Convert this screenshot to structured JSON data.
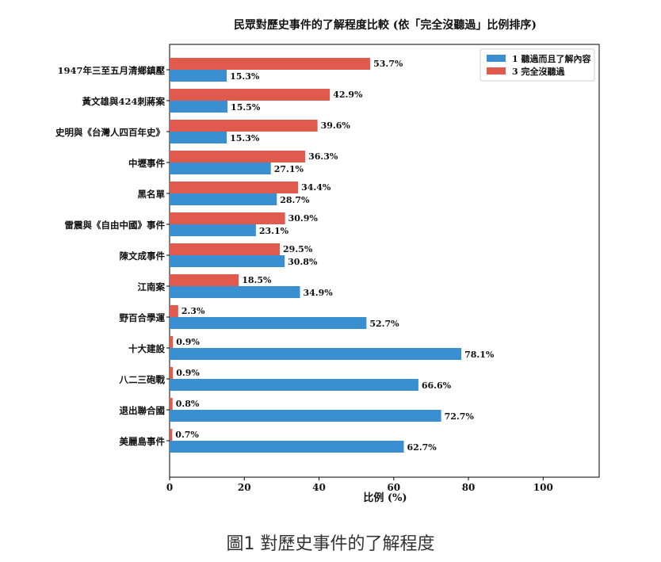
{
  "caption": "圖1 對歷史事件的了解程度",
  "colors": {
    "heard": "#3a8fd0",
    "never": "#e05a4e"
  },
  "chart_data": {
    "type": "bar",
    "orientation": "horizontal",
    "title": "民眾對歷史事件的了解程度比較 (依「完全沒聽過」比例排序)",
    "xlabel": "比例 (%)",
    "ylabel": "",
    "xlim": [
      0,
      115
    ],
    "xticks": [
      0,
      20,
      40,
      60,
      80,
      100
    ],
    "grid": false,
    "legend_position": "top-right",
    "categories": [
      "1947年三至五月清鄉鎮壓",
      "黃文雄與424刺蔣案",
      "史明與《台灣人四百年史》",
      "中壢事件",
      "黑名單",
      "雷震與《自由中國》事件",
      "陳文成事件",
      "江南案",
      "野百合學運",
      "十大建設",
      "八二三砲戰",
      "退出聯合國",
      "美麗島事件"
    ],
    "series": [
      {
        "name": "3 完全沒聽過",
        "color": "#e05a4e",
        "values": [
          53.7,
          42.9,
          39.6,
          36.3,
          34.4,
          30.9,
          29.5,
          18.5,
          2.3,
          0.9,
          0.9,
          0.8,
          0.7
        ]
      },
      {
        "name": "1 聽過而且了解內容",
        "color": "#3a8fd0",
        "values": [
          15.3,
          15.5,
          15.3,
          27.1,
          28.7,
          23.1,
          30.8,
          34.9,
          52.7,
          78.1,
          66.6,
          72.7,
          62.7
        ]
      }
    ],
    "legend_order": [
      "1 聽過而且了解內容",
      "3 完全沒聽過"
    ],
    "value_suffix": "%"
  }
}
